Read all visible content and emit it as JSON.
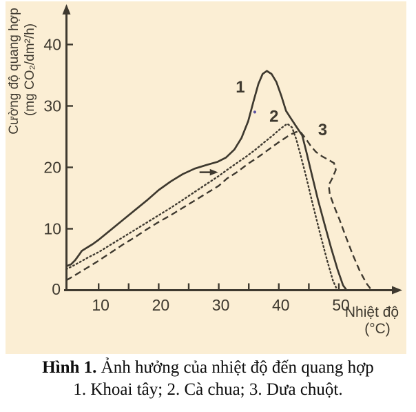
{
  "colors": {
    "ink": "#3e392f",
    "plot_background": "#fbeed4",
    "marker_dot": "#5c54a4",
    "caption_text": "#0e0e0e"
  },
  "caption": {
    "figure_label": "Hình 1.",
    "title": "Ảnh hưởng của nhiệt độ đến quang hợp",
    "legend": "1. Khoai tây; 2. Cà chua; 3. Dưa chuột."
  },
  "chart_data": {
    "type": "line",
    "title": "",
    "xlabel": "Nhiệt độ",
    "xlabel_unit": "(°C)",
    "ylabel_line1": "Cường độ quang hợp",
    "ylabel_line2": "(mg CO₂/dm²/h)",
    "xlim": [
      4.6,
      58
    ],
    "ylim": [
      0,
      46
    ],
    "grid": false,
    "legend_position": "caption below figure (numbered curves)",
    "x_ticks": [
      10,
      15,
      20,
      25,
      30,
      35,
      40,
      45,
      50
    ],
    "x_tick_labels": [
      10,
      20,
      30,
      40,
      50
    ],
    "y_tick_labels": [
      10,
      20,
      30,
      40
    ],
    "origin_label": "0",
    "series": [
      {
        "curve_label": "1",
        "name": "Khoai tây",
        "id": "khoai-tay",
        "style": "solid",
        "label_pos": [
          33.6,
          32.2
        ],
        "points": [
          [
            4.6,
            3.9
          ],
          [
            5.4,
            4.2
          ],
          [
            6.1,
            4.9
          ],
          [
            6.7,
            5.7
          ],
          [
            7.2,
            6.4
          ],
          [
            8,
            6.9
          ],
          [
            9,
            7.5
          ],
          [
            10,
            8.2
          ],
          [
            12,
            9.8
          ],
          [
            14,
            11.4
          ],
          [
            16,
            13.0
          ],
          [
            18,
            14.6
          ],
          [
            20,
            16.3
          ],
          [
            22,
            17.7
          ],
          [
            24,
            18.9
          ],
          [
            26,
            19.8
          ],
          [
            28,
            20.4
          ],
          [
            29.8,
            20.9
          ],
          [
            31.2,
            21.6
          ],
          [
            32.6,
            22.9
          ],
          [
            33.8,
            24.8
          ],
          [
            34.9,
            27.5
          ],
          [
            35.8,
            30.8
          ],
          [
            36.6,
            33.6
          ],
          [
            37.3,
            35.2
          ],
          [
            38.0,
            35.7
          ],
          [
            38.8,
            35.2
          ],
          [
            39.6,
            33.9
          ],
          [
            40.4,
            31.7
          ],
          [
            41.2,
            29.2
          ],
          [
            42.0,
            28.0
          ],
          [
            43.0,
            26.5
          ],
          [
            43.9,
            25.2
          ],
          [
            44.6,
            22.5
          ],
          [
            45.5,
            18.8
          ],
          [
            46.5,
            14.8
          ],
          [
            47.6,
            10.8
          ],
          [
            48.7,
            6.9
          ],
          [
            49.8,
            3.3
          ],
          [
            50.7,
            0.8
          ],
          [
            51.3,
            0.0
          ]
        ]
      },
      {
        "curve_label": "2",
        "name": "Cà chua",
        "id": "ca-chua",
        "style": "dotted",
        "label_pos": [
          39.2,
          27.4
        ],
        "points": [
          [
            4.6,
            3.4
          ],
          [
            6,
            4.1
          ],
          [
            8,
            5.2
          ],
          [
            10,
            6.2
          ],
          [
            12,
            7.4
          ],
          [
            14,
            8.6
          ],
          [
            16,
            9.8
          ],
          [
            18,
            11.0
          ],
          [
            20,
            12.2
          ],
          [
            22,
            13.4
          ],
          [
            24,
            14.7
          ],
          [
            26,
            16.0
          ],
          [
            28,
            17.3
          ],
          [
            30,
            18.6
          ],
          [
            31.4,
            19.6
          ],
          [
            33,
            20.7
          ],
          [
            34.5,
            21.7
          ],
          [
            36,
            22.8
          ],
          [
            37.6,
            24.1
          ],
          [
            39,
            25.2
          ],
          [
            40.3,
            26.3
          ],
          [
            41.4,
            27.1
          ],
          [
            42.2,
            26.5
          ],
          [
            42.9,
            24.6
          ],
          [
            43.7,
            21.7
          ],
          [
            44.6,
            18.3
          ],
          [
            45.6,
            14.2
          ],
          [
            46.8,
            9.5
          ],
          [
            48,
            5.0
          ],
          [
            49,
            1.6
          ],
          [
            49.6,
            0.3
          ]
        ]
      },
      {
        "curve_label": "3",
        "name": "Dưa chuột",
        "id": "dua-chuot",
        "style": "dashed",
        "label_pos": [
          47.3,
          25.2
        ],
        "points": [
          [
            4.6,
            1.6
          ],
          [
            6,
            2.4
          ],
          [
            8,
            3.6
          ],
          [
            10,
            4.8
          ],
          [
            12,
            6.1
          ],
          [
            14,
            7.4
          ],
          [
            16,
            8.6
          ],
          [
            18,
            9.9
          ],
          [
            20,
            11.1
          ],
          [
            22,
            12.2
          ],
          [
            24,
            13.4
          ],
          [
            26,
            14.6
          ],
          [
            28,
            15.8
          ],
          [
            30,
            17.0
          ],
          [
            31.4,
            18.2
          ],
          [
            33,
            19.2
          ],
          [
            34.9,
            20.6
          ],
          [
            36.6,
            21.7
          ],
          [
            38.3,
            22.9
          ],
          [
            40,
            24.1
          ],
          [
            41.7,
            25.2
          ],
          [
            42.7,
            25.7
          ],
          [
            43.5,
            25.9
          ],
          [
            44.4,
            24.8
          ],
          [
            45.3,
            23.5
          ],
          [
            46.2,
            22.5
          ],
          [
            47.2,
            21.8
          ],
          [
            48.3,
            21.2
          ],
          [
            49.2,
            20.7
          ],
          [
            49.5,
            19.6
          ],
          [
            48.9,
            18.2
          ],
          [
            48.3,
            17.1
          ],
          [
            48.5,
            15.6
          ],
          [
            49.2,
            13.7
          ],
          [
            50.1,
            11.5
          ],
          [
            51.2,
            8.6
          ],
          [
            52.3,
            5.8
          ],
          [
            53.5,
            3.1
          ],
          [
            54.6,
            1.1
          ],
          [
            55.3,
            0.2
          ]
        ]
      }
    ],
    "annotations": [
      {
        "type": "arrow",
        "from": [
          26.8,
          19.2
        ],
        "to": [
          29.9,
          19.2
        ]
      },
      {
        "type": "dot",
        "at": [
          36.0,
          29.0
        ],
        "color": "#5c54a4"
      }
    ]
  }
}
